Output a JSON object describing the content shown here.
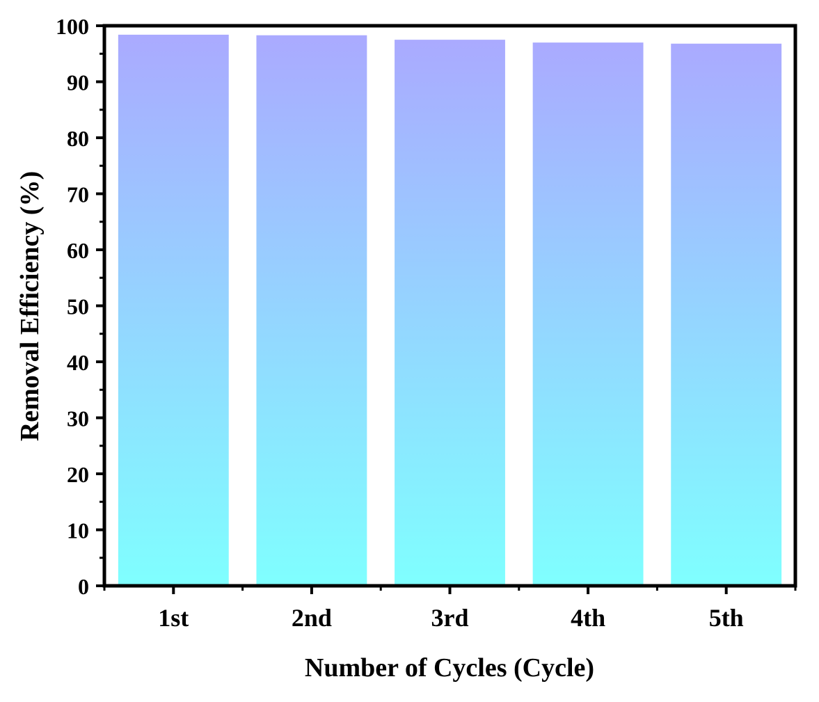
{
  "chart_data": {
    "type": "bar",
    "title": "",
    "xlabel": "Number of Cycles (Cycle)",
    "ylabel": "Removal Efficiency (%)",
    "categories": [
      "1st",
      "2nd",
      "3rd",
      "4th",
      "5th"
    ],
    "values": [
      98.4,
      98.3,
      97.5,
      97.0,
      96.8
    ],
    "ylim": [
      0,
      100
    ],
    "yticks": [
      0,
      10,
      20,
      30,
      40,
      50,
      60,
      70,
      80,
      90,
      100
    ],
    "ytick_labels": [
      "0",
      "10",
      "20",
      "30",
      "40",
      "50",
      "60",
      "70",
      "80",
      "90",
      "100"
    ],
    "grid": false,
    "legend": "none",
    "colors": {
      "bar_top": "#aaaaff",
      "bar_bottom": "#7fffff",
      "axis": "#000000"
    }
  }
}
